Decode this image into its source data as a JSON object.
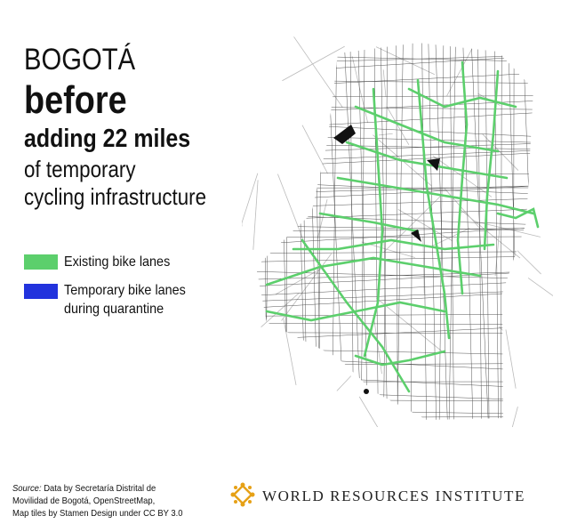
{
  "header": {
    "city": "BOGOTÁ",
    "emphasis": "before",
    "headline": "adding 22 miles",
    "lines": [
      "of temporary",
      "cycling infrastructure"
    ]
  },
  "legend": {
    "items": [
      {
        "label": "Existing bike lanes"
      },
      {
        "label": "Temporary bike lanes",
        "label_line2": "during quarantine"
      }
    ]
  },
  "source": {
    "label": "Source:",
    "lines": [
      "Data by Secretaría Distrital de",
      "Movilidad de Bogotá, OpenStreetMap,",
      "Map tiles by Stamen Design under CC BY 3.0"
    ]
  },
  "logo": {
    "text": "WORLD RESOURCES INSTITUTE"
  }
}
